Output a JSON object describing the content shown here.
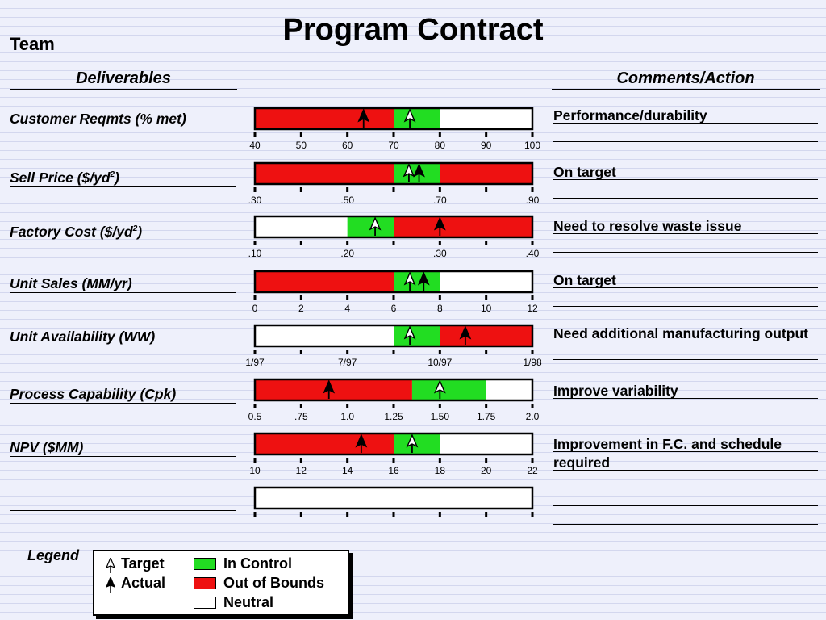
{
  "title": "Program Contract",
  "team_label": "Team",
  "columns": {
    "deliverables": "Deliverables",
    "comments": "Comments/Action"
  },
  "colors": {
    "in_control": "#22dd22",
    "out_of_bounds": "#ee1111",
    "neutral": "#ffffff"
  },
  "chart_data": {
    "type": "bullet",
    "rows": [
      {
        "label": "Customer Reqmts (% met)",
        "ticks": [
          "40",
          "50",
          "60",
          "70",
          "80",
          "90",
          "100"
        ],
        "scale": [
          40,
          100
        ],
        "segments": [
          {
            "from": 40,
            "to": 70,
            "status": "out_of_bounds"
          },
          {
            "from": 70,
            "to": 80,
            "status": "in_control"
          },
          {
            "from": 80,
            "to": 100,
            "status": "neutral"
          }
        ],
        "target": 73.5,
        "actual": 63.5,
        "comment": "Performance/durability"
      },
      {
        "label": "Sell Price ($/yd",
        "label_sup": "2",
        "label_tail": ")",
        "ticks": [
          ".30",
          "",
          ".50",
          "",
          ".70",
          "",
          ".90"
        ],
        "scale": [
          0.3,
          0.9
        ],
        "segments": [
          {
            "from": 0.3,
            "to": 0.6,
            "status": "out_of_bounds"
          },
          {
            "from": 0.6,
            "to": 0.7,
            "status": "in_control"
          },
          {
            "from": 0.7,
            "to": 0.9,
            "status": "out_of_bounds"
          }
        ],
        "target": 0.633,
        "actual": 0.655,
        "comment": "On target"
      },
      {
        "label": "Factory Cost ($/yd",
        "label_sup": "2",
        "label_tail": ")",
        "ticks": [
          ".10",
          "",
          ".20",
          "",
          ".30",
          "",
          ".40"
        ],
        "scale": [
          0.1,
          0.4
        ],
        "segments": [
          {
            "from": 0.1,
            "to": 0.2,
            "status": "neutral"
          },
          {
            "from": 0.2,
            "to": 0.25,
            "status": "in_control"
          },
          {
            "from": 0.25,
            "to": 0.4,
            "status": "out_of_bounds"
          }
        ],
        "target": 0.23,
        "actual": 0.3,
        "comment": "Need to resolve waste issue"
      },
      {
        "label": "Unit Sales (MM/yr)",
        "ticks": [
          "0",
          "2",
          "4",
          "6",
          "8",
          "10",
          "12"
        ],
        "scale": [
          0,
          12
        ],
        "segments": [
          {
            "from": 0,
            "to": 6,
            "status": "out_of_bounds"
          },
          {
            "from": 6,
            "to": 8,
            "status": "in_control"
          },
          {
            "from": 8,
            "to": 12,
            "status": "neutral"
          }
        ],
        "target": 6.7,
        "actual": 7.3,
        "comment": "On target"
      },
      {
        "label": "Unit Availability (WW)",
        "ticks": [
          "1/97",
          "",
          "7/97",
          "",
          "10/97",
          "",
          "1/98"
        ],
        "scale": [
          0,
          12
        ],
        "segments": [
          {
            "from": 0,
            "to": 6,
            "status": "neutral"
          },
          {
            "from": 6,
            "to": 8,
            "status": "in_control"
          },
          {
            "from": 8,
            "to": 12,
            "status": "out_of_bounds"
          }
        ],
        "target": 6.7,
        "actual": 9.1,
        "comment": "Need additional manufacturing output"
      },
      {
        "label": "Process Capability (Cpk)",
        "ticks": [
          "0.5",
          ".75",
          "1.0",
          "1.25",
          "1.50",
          "1.75",
          "2.0"
        ],
        "scale": [
          0.5,
          2.0
        ],
        "segments": [
          {
            "from": 0.5,
            "to": 1.35,
            "status": "out_of_bounds"
          },
          {
            "from": 1.35,
            "to": 1.75,
            "status": "in_control"
          },
          {
            "from": 1.75,
            "to": 2.0,
            "status": "neutral"
          }
        ],
        "target": 1.5,
        "actual": 0.9,
        "comment": "Improve variability"
      },
      {
        "label": "NPV ($MM)",
        "ticks": [
          "10",
          "12",
          "14",
          "16",
          "18",
          "20",
          "22"
        ],
        "scale": [
          10,
          22
        ],
        "segments": [
          {
            "from": 10,
            "to": 16,
            "status": "out_of_bounds"
          },
          {
            "from": 16,
            "to": 18,
            "status": "in_control"
          },
          {
            "from": 18,
            "to": 22,
            "status": "neutral"
          }
        ],
        "target": 16.8,
        "actual": 14.6,
        "comment": "Improvement in F.C. and schedule required"
      },
      {
        "label": "",
        "ticks": [
          "",
          "",
          "",
          "",
          "",
          "",
          ""
        ],
        "scale": [
          0,
          1
        ],
        "segments": [
          {
            "from": 0,
            "to": 1,
            "status": "neutral"
          }
        ],
        "target": null,
        "actual": null,
        "comment": ""
      }
    ]
  },
  "legend": {
    "label": "Legend",
    "target": "Target",
    "actual": "Actual",
    "in_control": "In Control",
    "out_of_bounds": "Out of Bounds",
    "neutral": "Neutral"
  }
}
